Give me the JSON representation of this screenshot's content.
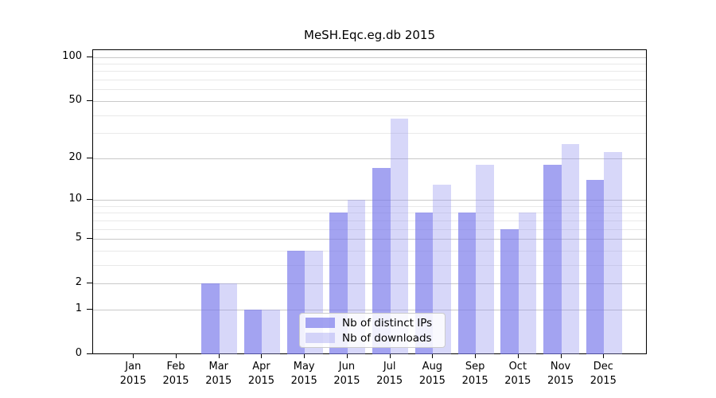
{
  "chart_data": {
    "type": "bar",
    "title": "MeSH.Eqc.eg.db 2015",
    "categories": [
      "Jan 2015",
      "Feb 2015",
      "Mar 2015",
      "Apr 2015",
      "May 2015",
      "Jun 2015",
      "Jul 2015",
      "Aug 2015",
      "Sep 2015",
      "Oct 2015",
      "Nov 2015",
      "Dec 2015"
    ],
    "series": [
      {
        "name": "Nb of distinct IPs",
        "values": [
          0,
          0,
          2,
          1,
          4,
          8,
          17,
          8,
          8,
          6,
          18,
          14
        ]
      },
      {
        "name": "Nb of downloads",
        "values": [
          0,
          0,
          2,
          1,
          4,
          10,
          38,
          13,
          18,
          8,
          25,
          22
        ]
      }
    ],
    "xlabel": "",
    "ylabel": "",
    "y_scale": "log1p",
    "y_ticks_major": [
      0,
      1,
      2,
      5,
      10,
      20,
      50,
      100
    ],
    "y_ticks_minor": [
      3,
      4,
      6,
      7,
      8,
      9,
      30,
      40,
      60,
      70,
      80,
      90
    ],
    "ylim": [
      0,
      112
    ],
    "grid": true,
    "legend_position": "lower center"
  },
  "colors": {
    "distinct_ips_bar": "rgba(120,120,235,0.68)",
    "downloads_bar": "rgba(150,150,240,0.38)",
    "grid_major": "#c9c9c9",
    "grid_minor": "#e9e9e9",
    "axis": "#000000",
    "background": "#ffffff"
  }
}
